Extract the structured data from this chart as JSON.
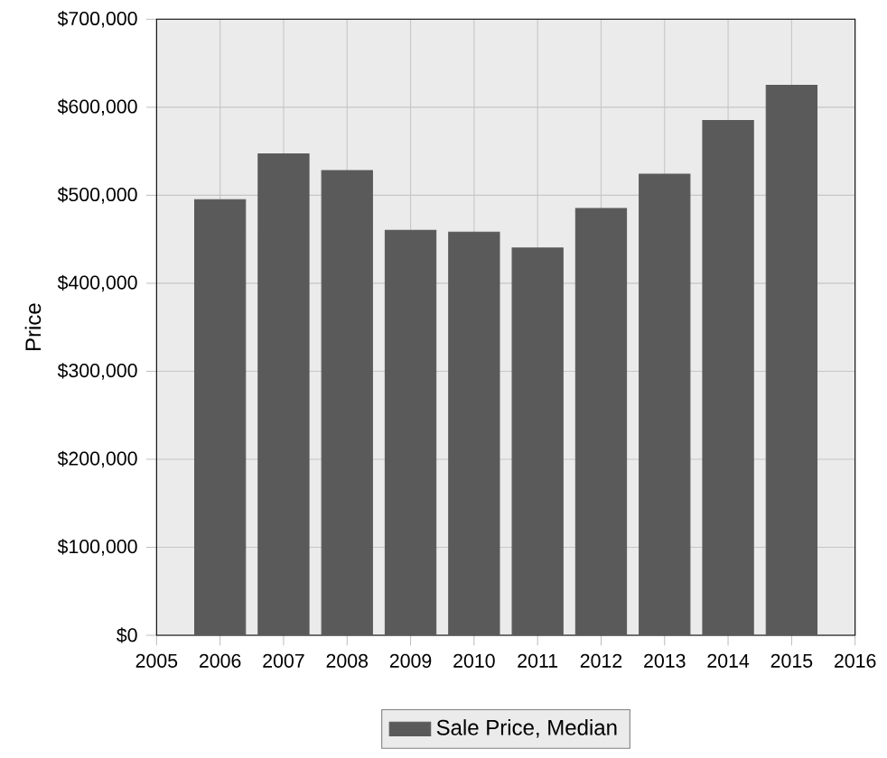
{
  "chart_data": {
    "type": "bar",
    "ylabel": "Price",
    "x": [
      2006,
      2007,
      2008,
      2009,
      2010,
      2011,
      2012,
      2013,
      2014,
      2015
    ],
    "series": [
      {
        "name": "Sale Price, Median",
        "color": "#5a5a5a",
        "values": [
          495000,
          547000,
          528000,
          460000,
          458000,
          440000,
          485000,
          524000,
          585000,
          625000
        ]
      }
    ],
    "xlim": [
      2005,
      2016
    ],
    "xticks": [
      2005,
      2006,
      2007,
      2008,
      2009,
      2010,
      2011,
      2012,
      2013,
      2014,
      2015,
      2016
    ],
    "ylim": [
      0,
      700000
    ],
    "yticks": [
      {
        "value": 0,
        "label": "$0"
      },
      {
        "value": 100000,
        "label": "$100,000"
      },
      {
        "value": 200000,
        "label": "$200,000"
      },
      {
        "value": 300000,
        "label": "$300,000"
      },
      {
        "value": 400000,
        "label": "$400,000"
      },
      {
        "value": 500000,
        "label": "$500,000"
      },
      {
        "value": 600000,
        "label": "$600,000"
      },
      {
        "value": 700000,
        "label": "$700,000"
      }
    ],
    "grid": true,
    "legend": "bottom"
  }
}
